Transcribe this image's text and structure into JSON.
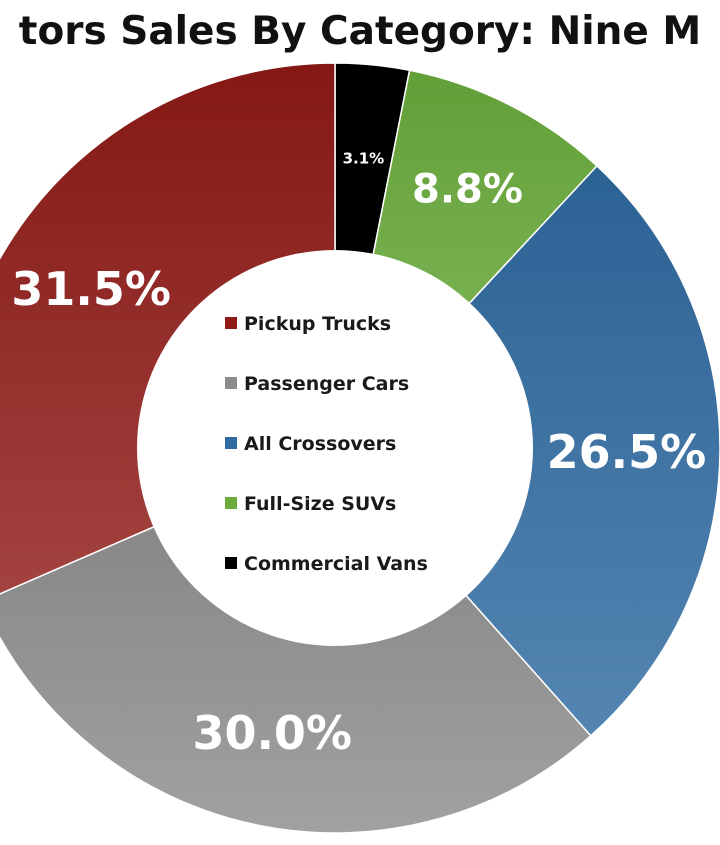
{
  "chart_data": {
    "type": "pie",
    "variant": "donut",
    "title": "tors Sales By Category: Nine M",
    "categories": [
      "Pickup Trucks",
      "Passenger Cars",
      "All Crossovers",
      "Full-Size SUVs",
      "Commercial Vans"
    ],
    "values": [
      31.5,
      30.0,
      26.5,
      8.8,
      3.1
    ],
    "value_labels": [
      "31.5%",
      "30.0%",
      "26.5%",
      "8.8%",
      "3.1%"
    ],
    "colors": [
      "#8f1a16",
      "#8c8c8c",
      "#2f6aa1",
      "#6aad3c",
      "#000000"
    ],
    "legend_position": "center"
  }
}
